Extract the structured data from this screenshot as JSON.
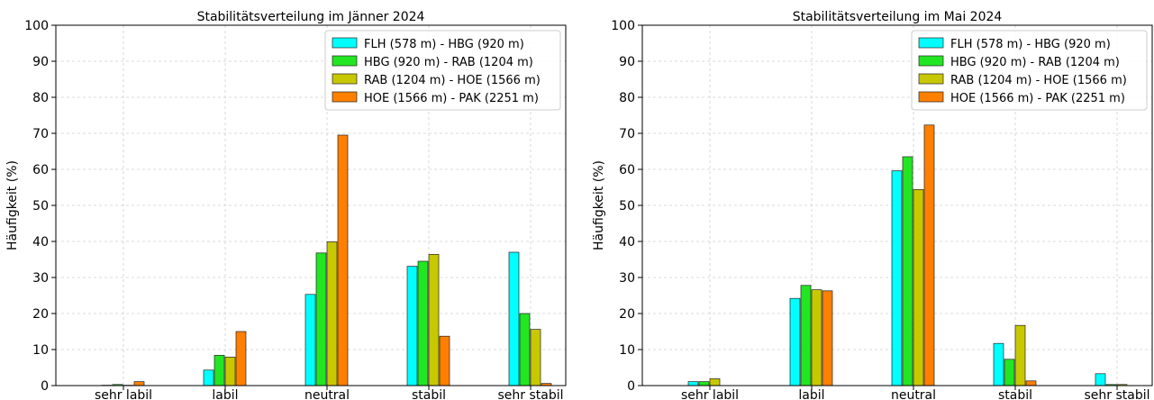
{
  "chart_data": [
    {
      "type": "bar",
      "title": "Stabilitätsverteilung im Jänner 2024",
      "xlabel": "",
      "ylabel": "Häufigkeit (%)",
      "ylim": [
        0,
        100
      ],
      "yticks": [
        "0",
        "10",
        "20",
        "30",
        "40",
        "50",
        "60",
        "70",
        "80",
        "90",
        "100"
      ],
      "grid": true,
      "legend_position": "top-right",
      "categories": [
        "sehr labil",
        "labil",
        "neutral",
        "stabil",
        "sehr stabil"
      ],
      "series": [
        {
          "name": "FLH (578 m) - HBG (920 m)",
          "color": "#00FFFF",
          "values": [
            0.1,
            4.3,
            25.3,
            33.1,
            37.0
          ]
        },
        {
          "name": "HBG (920 m) - RAB (1204 m)",
          "color": "#22E622",
          "values": [
            0.3,
            8.4,
            36.8,
            34.5,
            20.0
          ]
        },
        {
          "name": "RAB (1204 m) - HOE (1566 m)",
          "color": "#C8C800",
          "values": [
            0.1,
            7.9,
            39.9,
            36.4,
            15.6
          ]
        },
        {
          "name": "HOE (1566 m) - PAK (2251 m)",
          "color": "#FF7F00",
          "values": [
            1.1,
            15.0,
            69.5,
            13.7,
            0.6
          ]
        }
      ]
    },
    {
      "type": "bar",
      "title": "Stabilitätsverteilung im Mai 2024",
      "xlabel": "",
      "ylabel": "Häufigkeit (%)",
      "ylim": [
        0,
        100
      ],
      "yticks": [
        "0",
        "10",
        "20",
        "30",
        "40",
        "50",
        "60",
        "70",
        "80",
        "90",
        "100"
      ],
      "grid": true,
      "legend_position": "top-right",
      "categories": [
        "sehr labil",
        "labil",
        "neutral",
        "stabil",
        "sehr stabil"
      ],
      "series": [
        {
          "name": "FLH (578 m) - HBG (920 m)",
          "color": "#00FFFF",
          "values": [
            1.1,
            24.2,
            59.6,
            11.7,
            3.3
          ]
        },
        {
          "name": "HBG (920 m) - RAB (1204 m)",
          "color": "#22E622",
          "values": [
            1.1,
            27.8,
            63.5,
            7.3,
            0.3
          ]
        },
        {
          "name": "RAB (1204 m) - HOE (1566 m)",
          "color": "#C8C800",
          "values": [
            1.9,
            26.6,
            54.4,
            16.7,
            0.3
          ]
        },
        {
          "name": "HOE (1566 m) - PAK (2251 m)",
          "color": "#FF7F00",
          "values": [
            0.0,
            26.3,
            72.3,
            1.3,
            0.0
          ]
        }
      ]
    }
  ]
}
